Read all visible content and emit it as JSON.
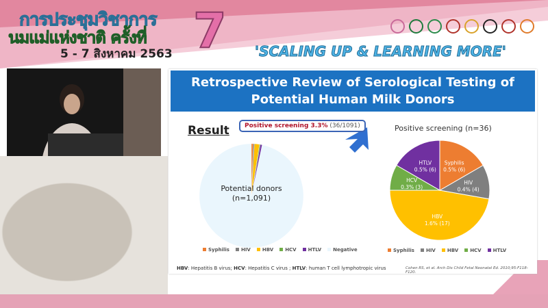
{
  "banner": {
    "thai_line1": "การประชุมวิชาการ",
    "thai_line2": "นมแม่แห่งชาติ ครั้งที่",
    "date": "5 - 7 สิงหาคม 2563",
    "edition": "7",
    "slogan": "'SCALING UP & LEARNING MORE'",
    "logo_colors": [
      "#c96a9a",
      "#1d7a3c",
      "#2b8a4a",
      "#b0322a",
      "#d9a22a",
      "#222222",
      "#b0322a",
      "#e07b2a"
    ]
  },
  "slide": {
    "title_line1": "Retrospective Review of Serological Testing of",
    "title_line2": "Potential Human Milk Donors",
    "result_label": "Result",
    "callout_bold": "Positive screening 3.3%",
    "callout_rest": " (36/1091)",
    "donor_label": "Potential donors",
    "donor_count": "(n=1,091)",
    "footnote": {
      "hbv": "HBV",
      "hbv_text": ": Hepatitis B virus; ",
      "hcv": "HCV",
      "hcv_text": ": Hepatitis C virus ; ",
      "htlv": "HTLV",
      "htlv_text": ": human T cell lymphotropic virus"
    },
    "citation": "Cohen RS, et al. Arch Dis Child Fetal Neonatal Ed. 2010;95:F118-F120."
  },
  "chart_data": [
    {
      "type": "pie",
      "categories": [
        "Syphilis",
        "HIV",
        "HBV",
        "HCV",
        "HTLV",
        "Negative"
      ],
      "values": [
        6,
        4,
        17,
        3,
        6,
        1055
      ],
      "colors": [
        "#ed7d31",
        "#7f7f7f",
        "#ffc000",
        "#70ad47",
        "#7030a0",
        "#eaf6fd"
      ],
      "legend": "bottom"
    },
    {
      "type": "pie",
      "title": "Positive screening (n=36)",
      "categories": [
        "Syphilis",
        "HIV",
        "HBV",
        "HCV",
        "HTLV"
      ],
      "values": [
        6,
        4,
        17,
        3,
        6
      ],
      "data_labels": [
        "0.5% (6)",
        "0.4% (4)",
        "1.6% (17)",
        "0.3% (3)",
        "0.5% (6)"
      ],
      "colors": [
        "#ed7d31",
        "#7f7f7f",
        "#ffc000",
        "#70ad47",
        "#7030a0"
      ],
      "legend": "bottom"
    }
  ]
}
